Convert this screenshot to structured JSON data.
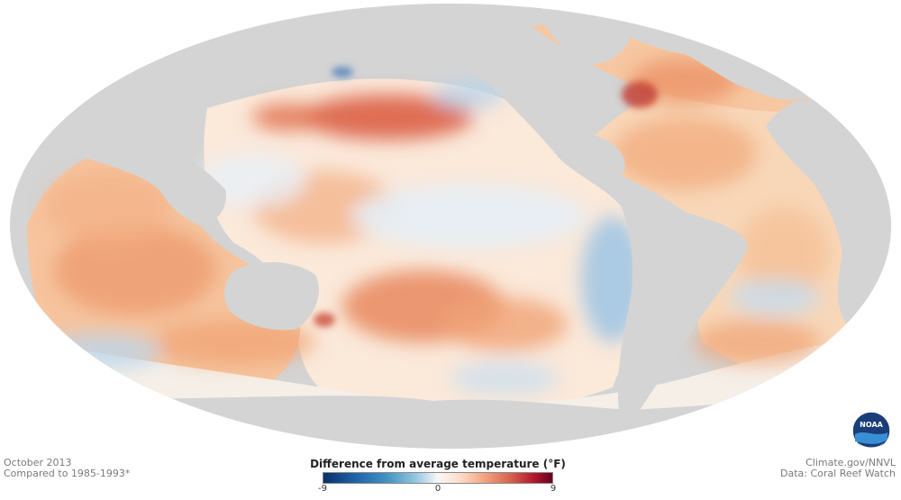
{
  "notes": {
    "date": "October 2013",
    "baseline": "Compared to 1985-1993*"
  },
  "credits": {
    "site": "Climate.gov/NNVL",
    "data": "Data: Coral Reef Watch"
  },
  "legend": {
    "title": "Difference from average temperature (°F)",
    "min_label": "-9",
    "mid_label": "0",
    "max_label": "9"
  },
  "logo": {
    "text": "NOAA",
    "icon": "noaa-logo-icon"
  },
  "colors": {
    "land": "#d4d4d4",
    "cold": "#2166ac",
    "neutral": "#f7f4ee",
    "warm": "#f4a582",
    "hot": "#c0392b"
  }
}
